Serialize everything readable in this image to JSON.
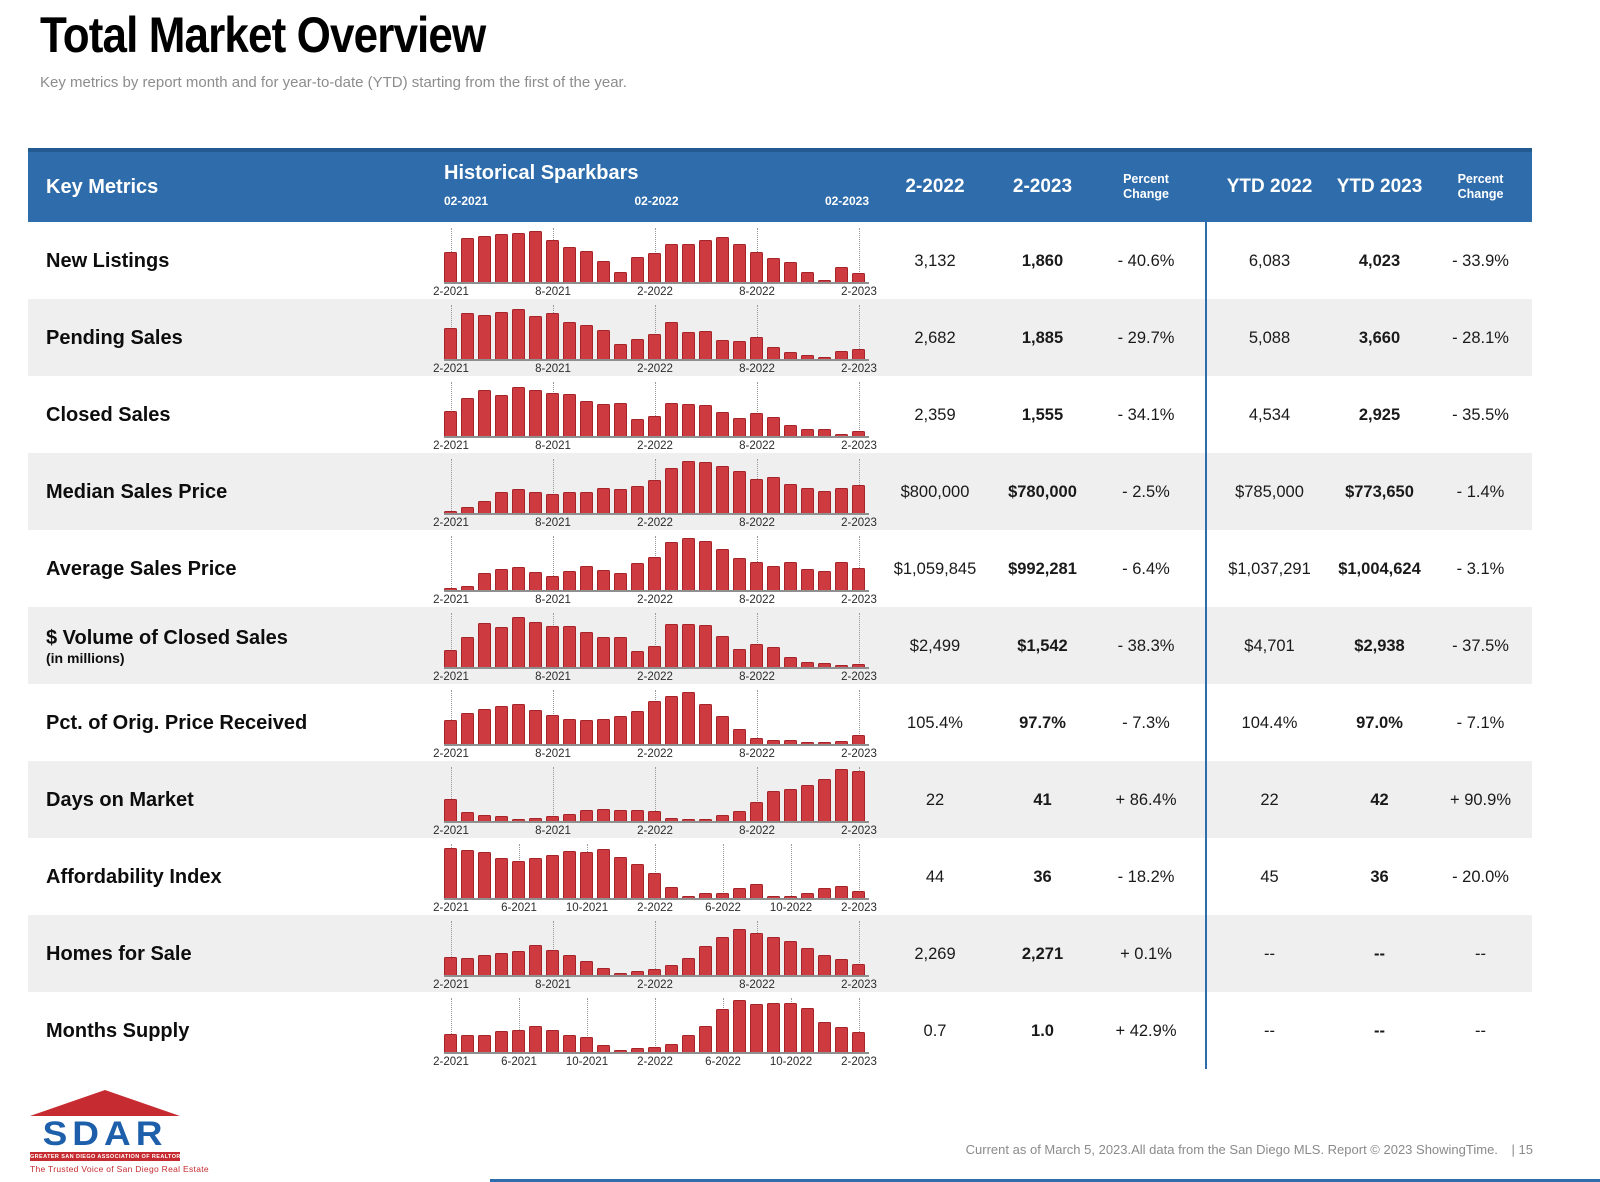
{
  "page": {
    "title": "Total Market Overview",
    "subtitle": "Key metrics by report month and for year-to-date (YTD) starting from the first of the year."
  },
  "colors": {
    "header_blue": "#2e6cab",
    "bar_red": "#cd3b40",
    "bar_border": "#a52429",
    "row_alt": "#efefef",
    "divider_blue": "#2e6cab"
  },
  "table": {
    "header": {
      "key_metrics": "Key Metrics",
      "sparkbars_title": "Historical Sparkbars",
      "spark_sublabels": [
        "02-2021",
        "02-2022",
        "02-2023"
      ],
      "columns": [
        "2-2022",
        "2-2023",
        "Percent Change",
        "YTD 2022",
        "YTD 2023",
        "Percent Change"
      ]
    },
    "rows": [
      {
        "label": "New Listings",
        "sublabel": "",
        "axis_labels": [
          "2-2021",
          "8-2021",
          "2-2022",
          "8-2022",
          "2-2023"
        ],
        "bars": [
          58,
          84,
          89,
          92,
          95,
          98,
          80,
          67,
          60,
          40,
          20,
          48,
          55,
          73,
          74,
          81,
          87,
          73,
          57,
          47,
          38,
          19,
          4,
          29,
          17
        ],
        "values": [
          "3,132",
          "1,860",
          "- 40.6%",
          "6,083",
          "4,023",
          "- 33.9%"
        ]
      },
      {
        "label": "Pending Sales",
        "sublabel": "",
        "axis_labels": [
          "2-2021",
          "8-2021",
          "2-2022",
          "8-2022",
          "2-2023"
        ],
        "bars": [
          60,
          88,
          84,
          90,
          96,
          83,
          88,
          72,
          65,
          55,
          28,
          38,
          48,
          72,
          52,
          54,
          36,
          35,
          43,
          24,
          14,
          8,
          4,
          16,
          19
        ],
        "values": [
          "2,682",
          "1,885",
          "- 29.7%",
          "5,088",
          "3,660",
          "- 28.1%"
        ]
      },
      {
        "label": "Closed Sales",
        "sublabel": "",
        "axis_labels": [
          "2-2021",
          "8-2021",
          "2-2022",
          "8-2022",
          "2-2023"
        ],
        "bars": [
          48,
          73,
          88,
          78,
          95,
          88,
          83,
          80,
          68,
          62,
          63,
          33,
          38,
          64,
          62,
          59,
          47,
          34,
          44,
          36,
          21,
          14,
          13,
          3,
          9
        ],
        "values": [
          "2,359",
          "1,555",
          "- 34.1%",
          "4,534",
          "2,925",
          "- 35.5%"
        ]
      },
      {
        "label": "Median Sales Price",
        "sublabel": "",
        "axis_labels": [
          "2-2021",
          "8-2021",
          "2-2022",
          "8-2022",
          "2-2023"
        ],
        "bars": [
          4,
          12,
          24,
          41,
          46,
          41,
          37,
          41,
          40,
          49,
          46,
          52,
          64,
          87,
          100,
          98,
          91,
          81,
          66,
          69,
          56,
          49,
          43,
          49,
          54
        ],
        "values": [
          "$800,000",
          "$780,000",
          "- 2.5%",
          "$785,000",
          "$773,650",
          "- 1.4%"
        ]
      },
      {
        "label": "Average Sales Price",
        "sublabel": "",
        "axis_labels": [
          "2-2021",
          "8-2021",
          "2-2022",
          "8-2022",
          "2-2023"
        ],
        "bars": [
          4,
          7,
          32,
          41,
          44,
          34,
          27,
          37,
          46,
          39,
          32,
          51,
          64,
          92,
          100,
          94,
          79,
          62,
          54,
          47,
          54,
          41,
          36,
          54,
          42
        ],
        "values": [
          "$1,059,845",
          "$992,281",
          "- 6.4%",
          "$1,037,291",
          "$1,004,624",
          "- 3.1%"
        ]
      },
      {
        "label": "$ Volume of Closed Sales",
        "sublabel": "(in millions)",
        "axis_labels": [
          "2-2021",
          "8-2021",
          "2-2022",
          "8-2022",
          "2-2023"
        ],
        "bars": [
          32,
          58,
          84,
          77,
          96,
          87,
          79,
          79,
          68,
          58,
          58,
          31,
          41,
          82,
          83,
          80,
          60,
          35,
          45,
          38,
          20,
          10,
          7,
          2,
          6
        ],
        "values": [
          "$2,499",
          "$1,542",
          "- 38.3%",
          "$4,701",
          "$2,938",
          "- 37.5%"
        ]
      },
      {
        "label": "Pct. of Orig. Price Received",
        "sublabel": "",
        "axis_labels": [
          "2-2021",
          "8-2021",
          "2-2022",
          "8-2022",
          "2-2023"
        ],
        "bars": [
          46,
          60,
          68,
          73,
          76,
          66,
          56,
          48,
          46,
          48,
          53,
          63,
          83,
          93,
          100,
          76,
          53,
          28,
          12,
          8,
          7,
          4,
          2,
          5,
          17
        ],
        "values": [
          "105.4%",
          "97.7%",
          "- 7.3%",
          "104.4%",
          "97.0%",
          "- 7.1%"
        ]
      },
      {
        "label": "Days on Market",
        "sublabel": "",
        "axis_labels": [
          "2-2021",
          "8-2021",
          "2-2022",
          "8-2022",
          "2-2023"
        ],
        "bars": [
          42,
          17,
          11,
          9,
          3,
          5,
          9,
          13,
          21,
          23,
          21,
          21,
          19,
          6,
          4,
          3,
          11,
          19,
          37,
          57,
          61,
          69,
          81,
          100,
          96
        ],
        "values": [
          "22",
          "41",
          "+ 86.4%",
          "22",
          "42",
          "+ 90.9%"
        ]
      },
      {
        "label": "Affordability Index",
        "sublabel": "",
        "axis_labels": [
          "2-2021",
          "6-2021",
          "10-2021",
          "2-2022",
          "6-2022",
          "10-2022",
          "2-2023"
        ],
        "bars": [
          97,
          93,
          88,
          76,
          72,
          76,
          82,
          90,
          88,
          95,
          79,
          65,
          48,
          22,
          3,
          9,
          9,
          20,
          26,
          3,
          3,
          10,
          19,
          24,
          13
        ],
        "values": [
          "44",
          "36",
          "- 18.2%",
          "45",
          "36",
          "- 20.0%"
        ]
      },
      {
        "label": "Homes for Sale",
        "sublabel": "",
        "axis_labels": [
          "2-2021",
          "8-2021",
          "2-2022",
          "8-2022",
          "2-2023"
        ],
        "bars": [
          35,
          33,
          38,
          43,
          46,
          57,
          48,
          38,
          27,
          14,
          2,
          7,
          12,
          20,
          33,
          55,
          73,
          88,
          80,
          74,
          66,
          52,
          38,
          30,
          22
        ],
        "values": [
          "2,269",
          "2,271",
          "+ 0.1%",
          "--",
          "--",
          "--"
        ]
      },
      {
        "label": "Months Supply",
        "sublabel": "",
        "axis_labels": [
          "2-2021",
          "6-2021",
          "10-2021",
          "2-2022",
          "6-2022",
          "10-2022",
          "2-2023"
        ],
        "bars": [
          35,
          32,
          33,
          40,
          43,
          50,
          42,
          33,
          28,
          13,
          3,
          8,
          10,
          15,
          33,
          50,
          82,
          100,
          92,
          95,
          95,
          85,
          58,
          48,
          38
        ],
        "values": [
          "0.7",
          "1.0",
          "+ 42.9%",
          "--",
          "--",
          "--"
        ]
      }
    ]
  },
  "footer": {
    "logo": {
      "name": "SDAR",
      "band": "GREATER SAN DIEGO ASSOCIATION OF REALTORS®",
      "tagline": "The Trusted Voice of San Diego Real Estate"
    },
    "note": "Current as of March 5, 2023.All data from the San Diego MLS. Report © 2023 ShowingTime.",
    "page_number": "|  15"
  }
}
